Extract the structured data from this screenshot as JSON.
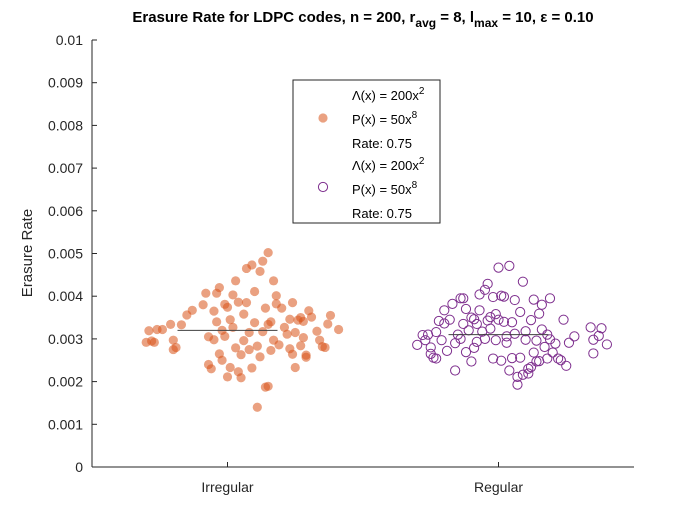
{
  "chart_data": {
    "type": "scatter",
    "title": {
      "prefix": "Erasure Rate for LDPC codes, n = 200, r",
      "sub1": "avg",
      "mid1": " = 8, l",
      "sub2": "max",
      "suffix": " = 10, ε = 0.10"
    },
    "xlabel": "",
    "ylabel": "Erasure Rate",
    "categories": [
      "Irregular",
      "Regular"
    ],
    "ylim": [
      0,
      0.01
    ],
    "yticks": [
      "0",
      "0.001",
      "0.002",
      "0.003",
      "0.004",
      "0.005",
      "0.006",
      "0.007",
      "0.008",
      "0.009",
      "0.01"
    ],
    "grid": false,
    "legend_position": "top-center",
    "series": [
      {
        "name_lines": [
          {
            "text": "Λ(x) = 200x",
            "sup": "2"
          },
          {
            "text": "P(x) = 50x",
            "sup": "8"
          },
          {
            "text": "Rate: 0.75",
            "sup": ""
          }
        ],
        "color": "#D95319",
        "marker": "filled-circle",
        "mean": 0.0032,
        "points": [
          [
            0.7,
            0.00292
          ],
          [
            0.72,
            0.00295
          ],
          [
            0.73,
            0.00292
          ],
          [
            0.71,
            0.00319
          ],
          [
            0.74,
            0.00322
          ],
          [
            0.76,
            0.00322
          ],
          [
            0.79,
            0.00334
          ],
          [
            0.8,
            0.00297
          ],
          [
            0.81,
            0.0028
          ],
          [
            0.83,
            0.00333
          ],
          [
            0.85,
            0.00356
          ],
          [
            0.87,
            0.00367
          ],
          [
            0.91,
            0.0038
          ],
          [
            0.92,
            0.00407
          ],
          [
            0.93,
            0.0024
          ],
          [
            0.93,
            0.00305
          ],
          [
            0.94,
            0.0023
          ],
          [
            0.95,
            0.00365
          ],
          [
            0.95,
            0.00298
          ],
          [
            0.96,
            0.0034
          ],
          [
            0.96,
            0.00407
          ],
          [
            0.97,
            0.0042
          ],
          [
            0.97,
            0.00265
          ],
          [
            0.98,
            0.0032
          ],
          [
            0.98,
            0.0025
          ],
          [
            0.99,
            0.00381
          ],
          [
            0.99,
            0.00306
          ],
          [
            1.0,
            0.00211
          ],
          [
            1.0,
            0.00374
          ],
          [
            1.01,
            0.00345
          ],
          [
            1.01,
            0.00233
          ],
          [
            1.02,
            0.00403
          ],
          [
            1.02,
            0.00327
          ],
          [
            1.03,
            0.00279
          ],
          [
            1.03,
            0.00436
          ],
          [
            1.04,
            0.00386
          ],
          [
            1.04,
            0.00223
          ],
          [
            1.05,
            0.00263
          ],
          [
            1.05,
            0.00209
          ],
          [
            1.06,
            0.00296
          ],
          [
            1.06,
            0.00358
          ],
          [
            1.07,
            0.00385
          ],
          [
            1.07,
            0.00465
          ],
          [
            1.08,
            0.00315
          ],
          [
            1.08,
            0.00275
          ],
          [
            1.09,
            0.00473
          ],
          [
            1.09,
            0.00232
          ],
          [
            1.1,
            0.00411
          ],
          [
            1.1,
            0.00338
          ],
          [
            1.11,
            0.0014
          ],
          [
            1.11,
            0.00283
          ],
          [
            1.12,
            0.00458
          ],
          [
            1.12,
            0.00258
          ],
          [
            1.13,
            0.00482
          ],
          [
            1.13,
            0.00317
          ],
          [
            1.14,
            0.00187
          ],
          [
            1.14,
            0.00372
          ],
          [
            1.15,
            0.00502
          ],
          [
            1.15,
            0.00334
          ],
          [
            1.15,
            0.00189
          ],
          [
            1.16,
            0.00273
          ],
          [
            1.16,
            0.0034
          ],
          [
            1.17,
            0.00297
          ],
          [
            1.17,
            0.00436
          ],
          [
            1.18,
            0.00401
          ],
          [
            1.18,
            0.00382
          ],
          [
            1.19,
            0.00286
          ],
          [
            1.2,
            0.00372
          ],
          [
            1.21,
            0.00327
          ],
          [
            1.22,
            0.00311
          ],
          [
            1.23,
            0.00277
          ],
          [
            1.24,
            0.00264
          ],
          [
            1.24,
            0.00385
          ],
          [
            1.25,
            0.00315
          ],
          [
            1.25,
            0.00233
          ],
          [
            1.26,
            0.00344
          ],
          [
            1.27,
            0.0035
          ],
          [
            1.27,
            0.00284
          ],
          [
            1.28,
            0.00341
          ],
          [
            1.28,
            0.00303
          ],
          [
            1.29,
            0.00262
          ],
          [
            1.29,
            0.00257
          ],
          [
            1.3,
            0.00366
          ],
          [
            1.31,
            0.00351
          ],
          [
            1.33,
            0.00318
          ],
          [
            1.34,
            0.00297
          ],
          [
            1.35,
            0.00282
          ],
          [
            1.36,
            0.0028
          ],
          [
            1.37,
            0.00335
          ],
          [
            1.38,
            0.00355
          ],
          [
            1.41,
            0.00322
          ],
          [
            0.8,
            0.00275
          ],
          [
            1.23,
            0.00346
          ]
        ]
      },
      {
        "name_lines": [
          {
            "text": "Λ(x) = 200x",
            "sup": "2"
          },
          {
            "text": "P(x) = 50x",
            "sup": "8"
          },
          {
            "text": "Rate: 0.75",
            "sup": ""
          }
        ],
        "color": "#7E2F8E",
        "marker": "open-circle",
        "mean": 0.0031,
        "points": [
          [
            1.7,
            0.00286
          ],
          [
            1.72,
            0.00309
          ],
          [
            1.73,
            0.00297
          ],
          [
            1.74,
            0.0031
          ],
          [
            1.75,
            0.0028
          ],
          [
            1.75,
            0.00265
          ],
          [
            1.76,
            0.00256
          ],
          [
            1.77,
            0.00254
          ],
          [
            1.77,
            0.00316
          ],
          [
            1.78,
            0.00342
          ],
          [
            1.79,
            0.00297
          ],
          [
            1.8,
            0.00367
          ],
          [
            1.8,
            0.00336
          ],
          [
            1.81,
            0.00272
          ],
          [
            1.82,
            0.00345
          ],
          [
            1.83,
            0.00382
          ],
          [
            1.84,
            0.0029
          ],
          [
            1.84,
            0.00226
          ],
          [
            1.85,
            0.0031
          ],
          [
            1.86,
            0.00395
          ],
          [
            1.86,
            0.003
          ],
          [
            1.87,
            0.00395
          ],
          [
            1.87,
            0.00335
          ],
          [
            1.88,
            0.0037
          ],
          [
            1.88,
            0.00269
          ],
          [
            1.89,
            0.0032
          ],
          [
            1.9,
            0.00247
          ],
          [
            1.9,
            0.0035
          ],
          [
            1.91,
            0.00279
          ],
          [
            1.91,
            0.00346
          ],
          [
            1.92,
            0.00335
          ],
          [
            1.92,
            0.00293
          ],
          [
            1.93,
            0.00367
          ],
          [
            1.93,
            0.00404
          ],
          [
            1.94,
            0.00317
          ],
          [
            1.95,
            0.003
          ],
          [
            1.95,
            0.00415
          ],
          [
            1.96,
            0.00343
          ],
          [
            1.96,
            0.00429
          ],
          [
            1.97,
            0.00351
          ],
          [
            1.97,
            0.00324
          ],
          [
            1.98,
            0.00254
          ],
          [
            1.98,
            0.00398
          ],
          [
            1.99,
            0.00358
          ],
          [
            1.99,
            0.00297
          ],
          [
            2.0,
            0.00467
          ],
          [
            2.0,
            0.00345
          ],
          [
            2.01,
            0.00401
          ],
          [
            2.01,
            0.00249
          ],
          [
            2.02,
            0.00399
          ],
          [
            2.02,
            0.0034
          ],
          [
            2.03,
            0.00291
          ],
          [
            2.03,
            0.00306
          ],
          [
            2.04,
            0.00226
          ],
          [
            2.04,
            0.00471
          ],
          [
            2.05,
            0.00339
          ],
          [
            2.05,
            0.00255
          ],
          [
            2.06,
            0.00312
          ],
          [
            2.06,
            0.00391
          ],
          [
            2.07,
            0.00211
          ],
          [
            2.07,
            0.00193
          ],
          [
            2.08,
            0.00256
          ],
          [
            2.08,
            0.00363
          ],
          [
            2.09,
            0.00434
          ],
          [
            2.09,
            0.00216
          ],
          [
            2.1,
            0.00318
          ],
          [
            2.1,
            0.00298
          ],
          [
            2.11,
            0.0023
          ],
          [
            2.11,
            0.00219
          ],
          [
            2.12,
            0.00344
          ],
          [
            2.12,
            0.00234
          ],
          [
            2.13,
            0.00268
          ],
          [
            2.13,
            0.00392
          ],
          [
            2.14,
            0.00296
          ],
          [
            2.14,
            0.00247
          ],
          [
            2.15,
            0.00359
          ],
          [
            2.15,
            0.00248
          ],
          [
            2.16,
            0.00322
          ],
          [
            2.16,
            0.0038
          ],
          [
            2.17,
            0.00281
          ],
          [
            2.18,
            0.00254
          ],
          [
            2.18,
            0.0031
          ],
          [
            2.19,
            0.00395
          ],
          [
            2.19,
            0.00299
          ],
          [
            2.2,
            0.00268
          ],
          [
            2.21,
            0.00289
          ],
          [
            2.22,
            0.00254
          ],
          [
            2.23,
            0.0025
          ],
          [
            2.24,
            0.00345
          ],
          [
            2.25,
            0.00237
          ],
          [
            2.26,
            0.00291
          ],
          [
            2.28,
            0.00306
          ],
          [
            2.34,
            0.00327
          ],
          [
            2.35,
            0.00266
          ],
          [
            2.35,
            0.00298
          ],
          [
            2.37,
            0.00307
          ],
          [
            2.38,
            0.00325
          ],
          [
            2.4,
            0.00287
          ]
        ]
      }
    ]
  }
}
